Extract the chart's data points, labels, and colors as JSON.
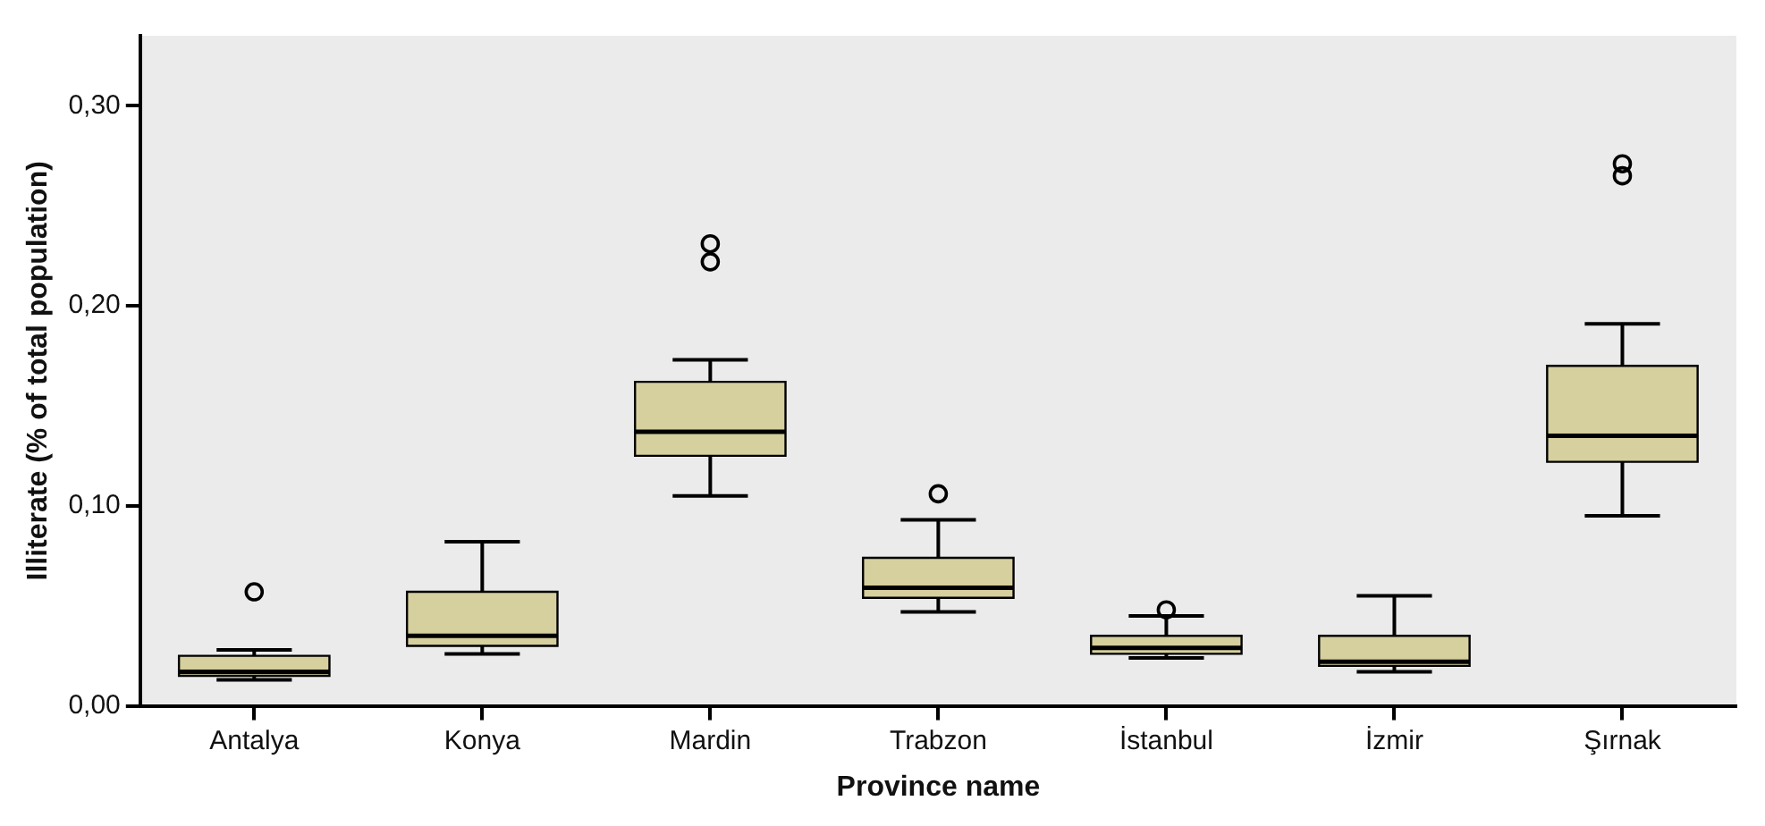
{
  "chart_data": {
    "type": "box",
    "xlabel": "Province name",
    "ylabel": "Illiterate (% of total population)",
    "categories": [
      "Antalya",
      "Konya",
      "Mardin",
      "Trabzon",
      "İstanbul",
      "İzmir",
      "Şırnak"
    ],
    "ylim": [
      0,
      0.335
    ],
    "yticks": [
      {
        "value": 0,
        "label": "0,00"
      },
      {
        "value": 0.1,
        "label": "0,10"
      },
      {
        "value": 0.2,
        "label": "0,20"
      },
      {
        "value": 0.3,
        "label": "0,30"
      }
    ],
    "grid": false,
    "series": [
      {
        "color": "#d6cf9e",
        "boxes": [
          {
            "low": 0.013,
            "q1": 0.015,
            "median": 0.017,
            "q3": 0.025,
            "high": 0.028,
            "outliers": [
              0.057
            ]
          },
          {
            "low": 0.026,
            "q1": 0.03,
            "median": 0.035,
            "q3": 0.057,
            "high": 0.082
          },
          {
            "low": 0.105,
            "q1": 0.125,
            "median": 0.137,
            "q3": 0.162,
            "high": 0.173,
            "outliers": [
              0.222,
              0.231
            ]
          },
          {
            "low": 0.047,
            "q1": 0.054,
            "median": 0.059,
            "q3": 0.074,
            "high": 0.093,
            "outliers": [
              0.106
            ]
          },
          {
            "low": 0.024,
            "q1": 0.026,
            "median": 0.029,
            "q3": 0.035,
            "high": 0.045,
            "outliers": [
              0.048
            ]
          },
          {
            "low": 0.017,
            "q1": 0.02,
            "median": 0.022,
            "q3": 0.035,
            "high": 0.055
          },
          {
            "low": 0.095,
            "q1": 0.122,
            "median": 0.135,
            "q3": 0.17,
            "high": 0.191,
            "outliers": [
              0.265,
              0.271
            ]
          }
        ]
      }
    ]
  }
}
